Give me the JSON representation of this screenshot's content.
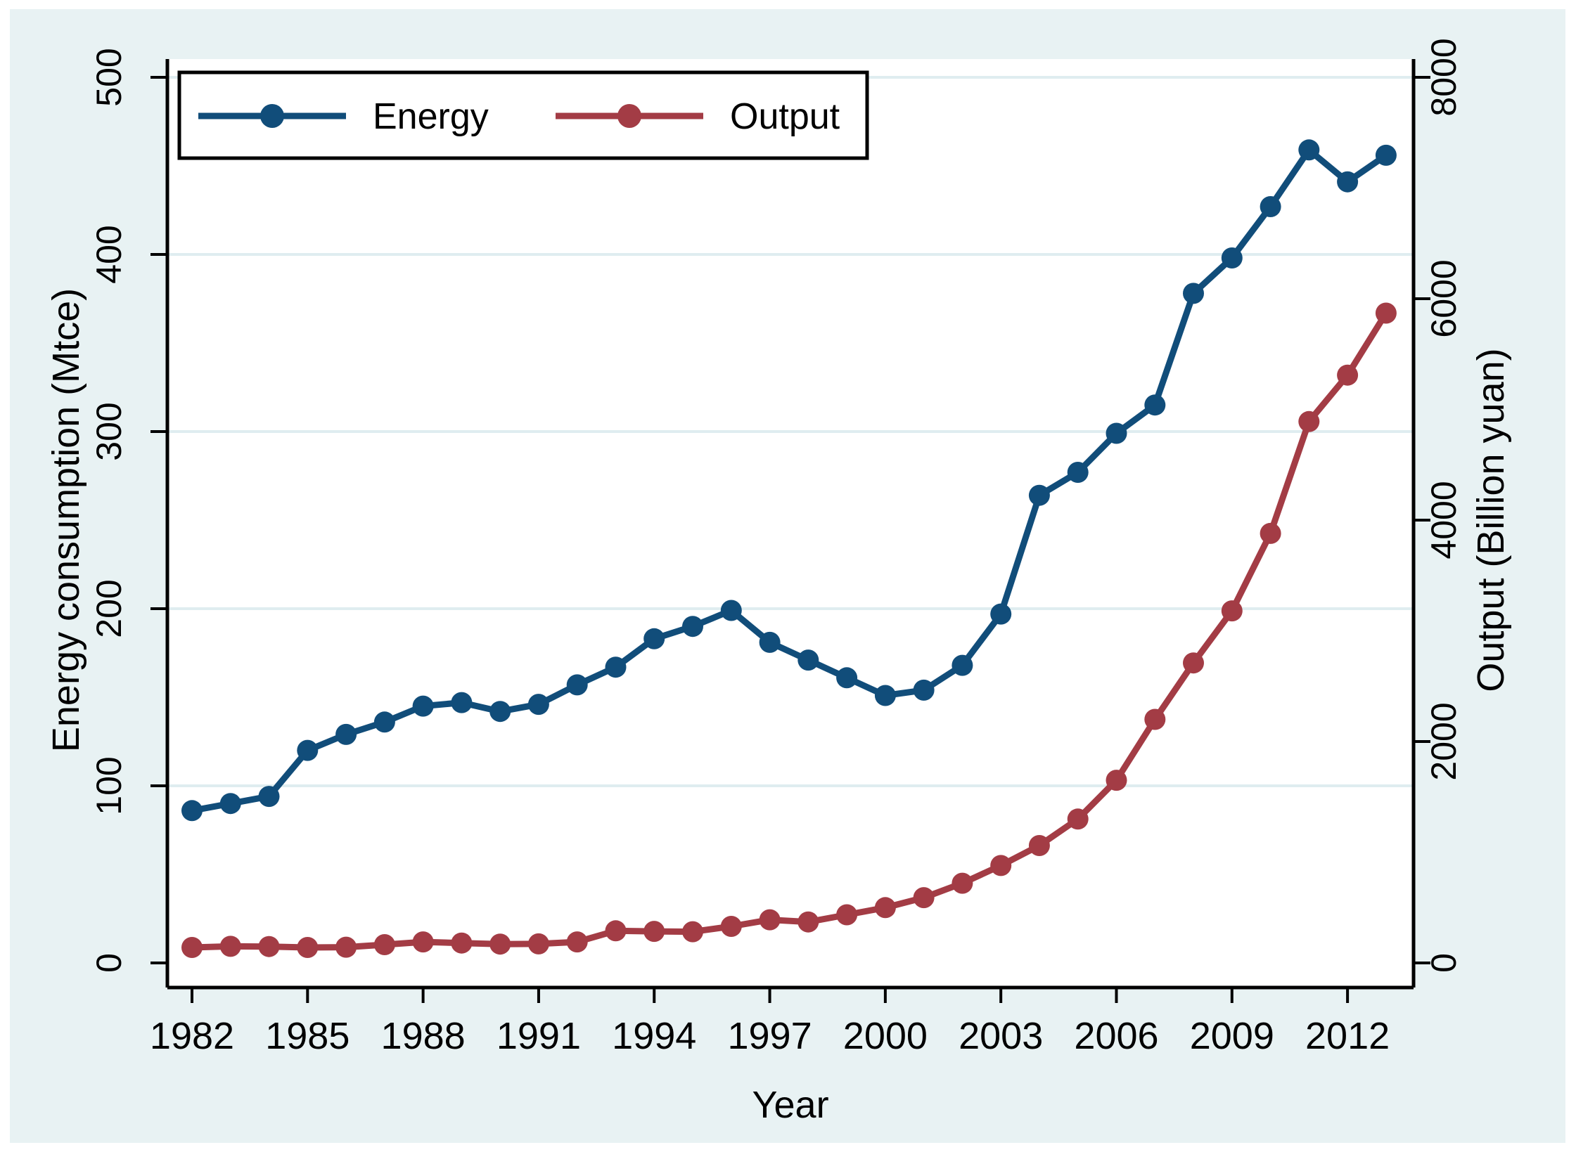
{
  "colors": {
    "figure_bg": "#ffffff",
    "graph_bg": "#e8f2f3",
    "plot_bg": "#ffffff",
    "grid": "#dfedf0",
    "axis": "#000000",
    "energy": "#114d7a",
    "output": "#a33c45"
  },
  "chart_data": {
    "type": "line",
    "title": "",
    "xlabel": "Year",
    "ylabel_left": "Energy consumption (Mtce)",
    "ylabel_right": "Output (Billion yuan)",
    "x": [
      1982,
      1983,
      1984,
      1985,
      1986,
      1987,
      1988,
      1989,
      1990,
      1991,
      1992,
      1993,
      1994,
      1995,
      1996,
      1997,
      1998,
      1999,
      2000,
      2001,
      2002,
      2003,
      2004,
      2005,
      2006,
      2007,
      2008,
      2009,
      2010,
      2011,
      2012,
      2013
    ],
    "series": [
      {
        "name": "Energy",
        "axis": "left",
        "color": "#114d7a",
        "marker": "circle",
        "values": [
          86,
          90,
          94,
          120,
          129,
          136,
          145,
          147,
          142,
          146,
          157,
          167,
          183,
          190,
          199,
          181,
          171,
          161,
          151,
          154,
          168,
          197,
          264,
          277,
          299,
          315,
          378,
          398,
          427,
          459,
          441,
          456
        ]
      },
      {
        "name": "Output",
        "axis": "right",
        "color": "#a33c45",
        "marker": "circle",
        "values": [
          140,
          150,
          148,
          140,
          142,
          165,
          190,
          180,
          170,
          172,
          190,
          290,
          285,
          282,
          330,
          390,
          370,
          435,
          500,
          590,
          720,
          880,
          1060,
          1300,
          1650,
          2200,
          2710,
          3180,
          3880,
          4890,
          5310,
          5870
        ]
      }
    ],
    "x_ticks": [
      1982,
      1985,
      1988,
      1991,
      1994,
      1997,
      2000,
      2003,
      2006,
      2009,
      2012
    ],
    "y_left": {
      "min": 0,
      "max": 500,
      "ticks": [
        0,
        100,
        200,
        300,
        400,
        500
      ]
    },
    "y_right": {
      "min": 0,
      "max": 8000,
      "ticks": [
        0,
        2000,
        4000,
        6000,
        8000
      ]
    },
    "legend": {
      "position": "top-left-inside",
      "items": [
        "Energy",
        "Output"
      ]
    },
    "grid": {
      "horizontal": true,
      "vertical": false
    }
  }
}
